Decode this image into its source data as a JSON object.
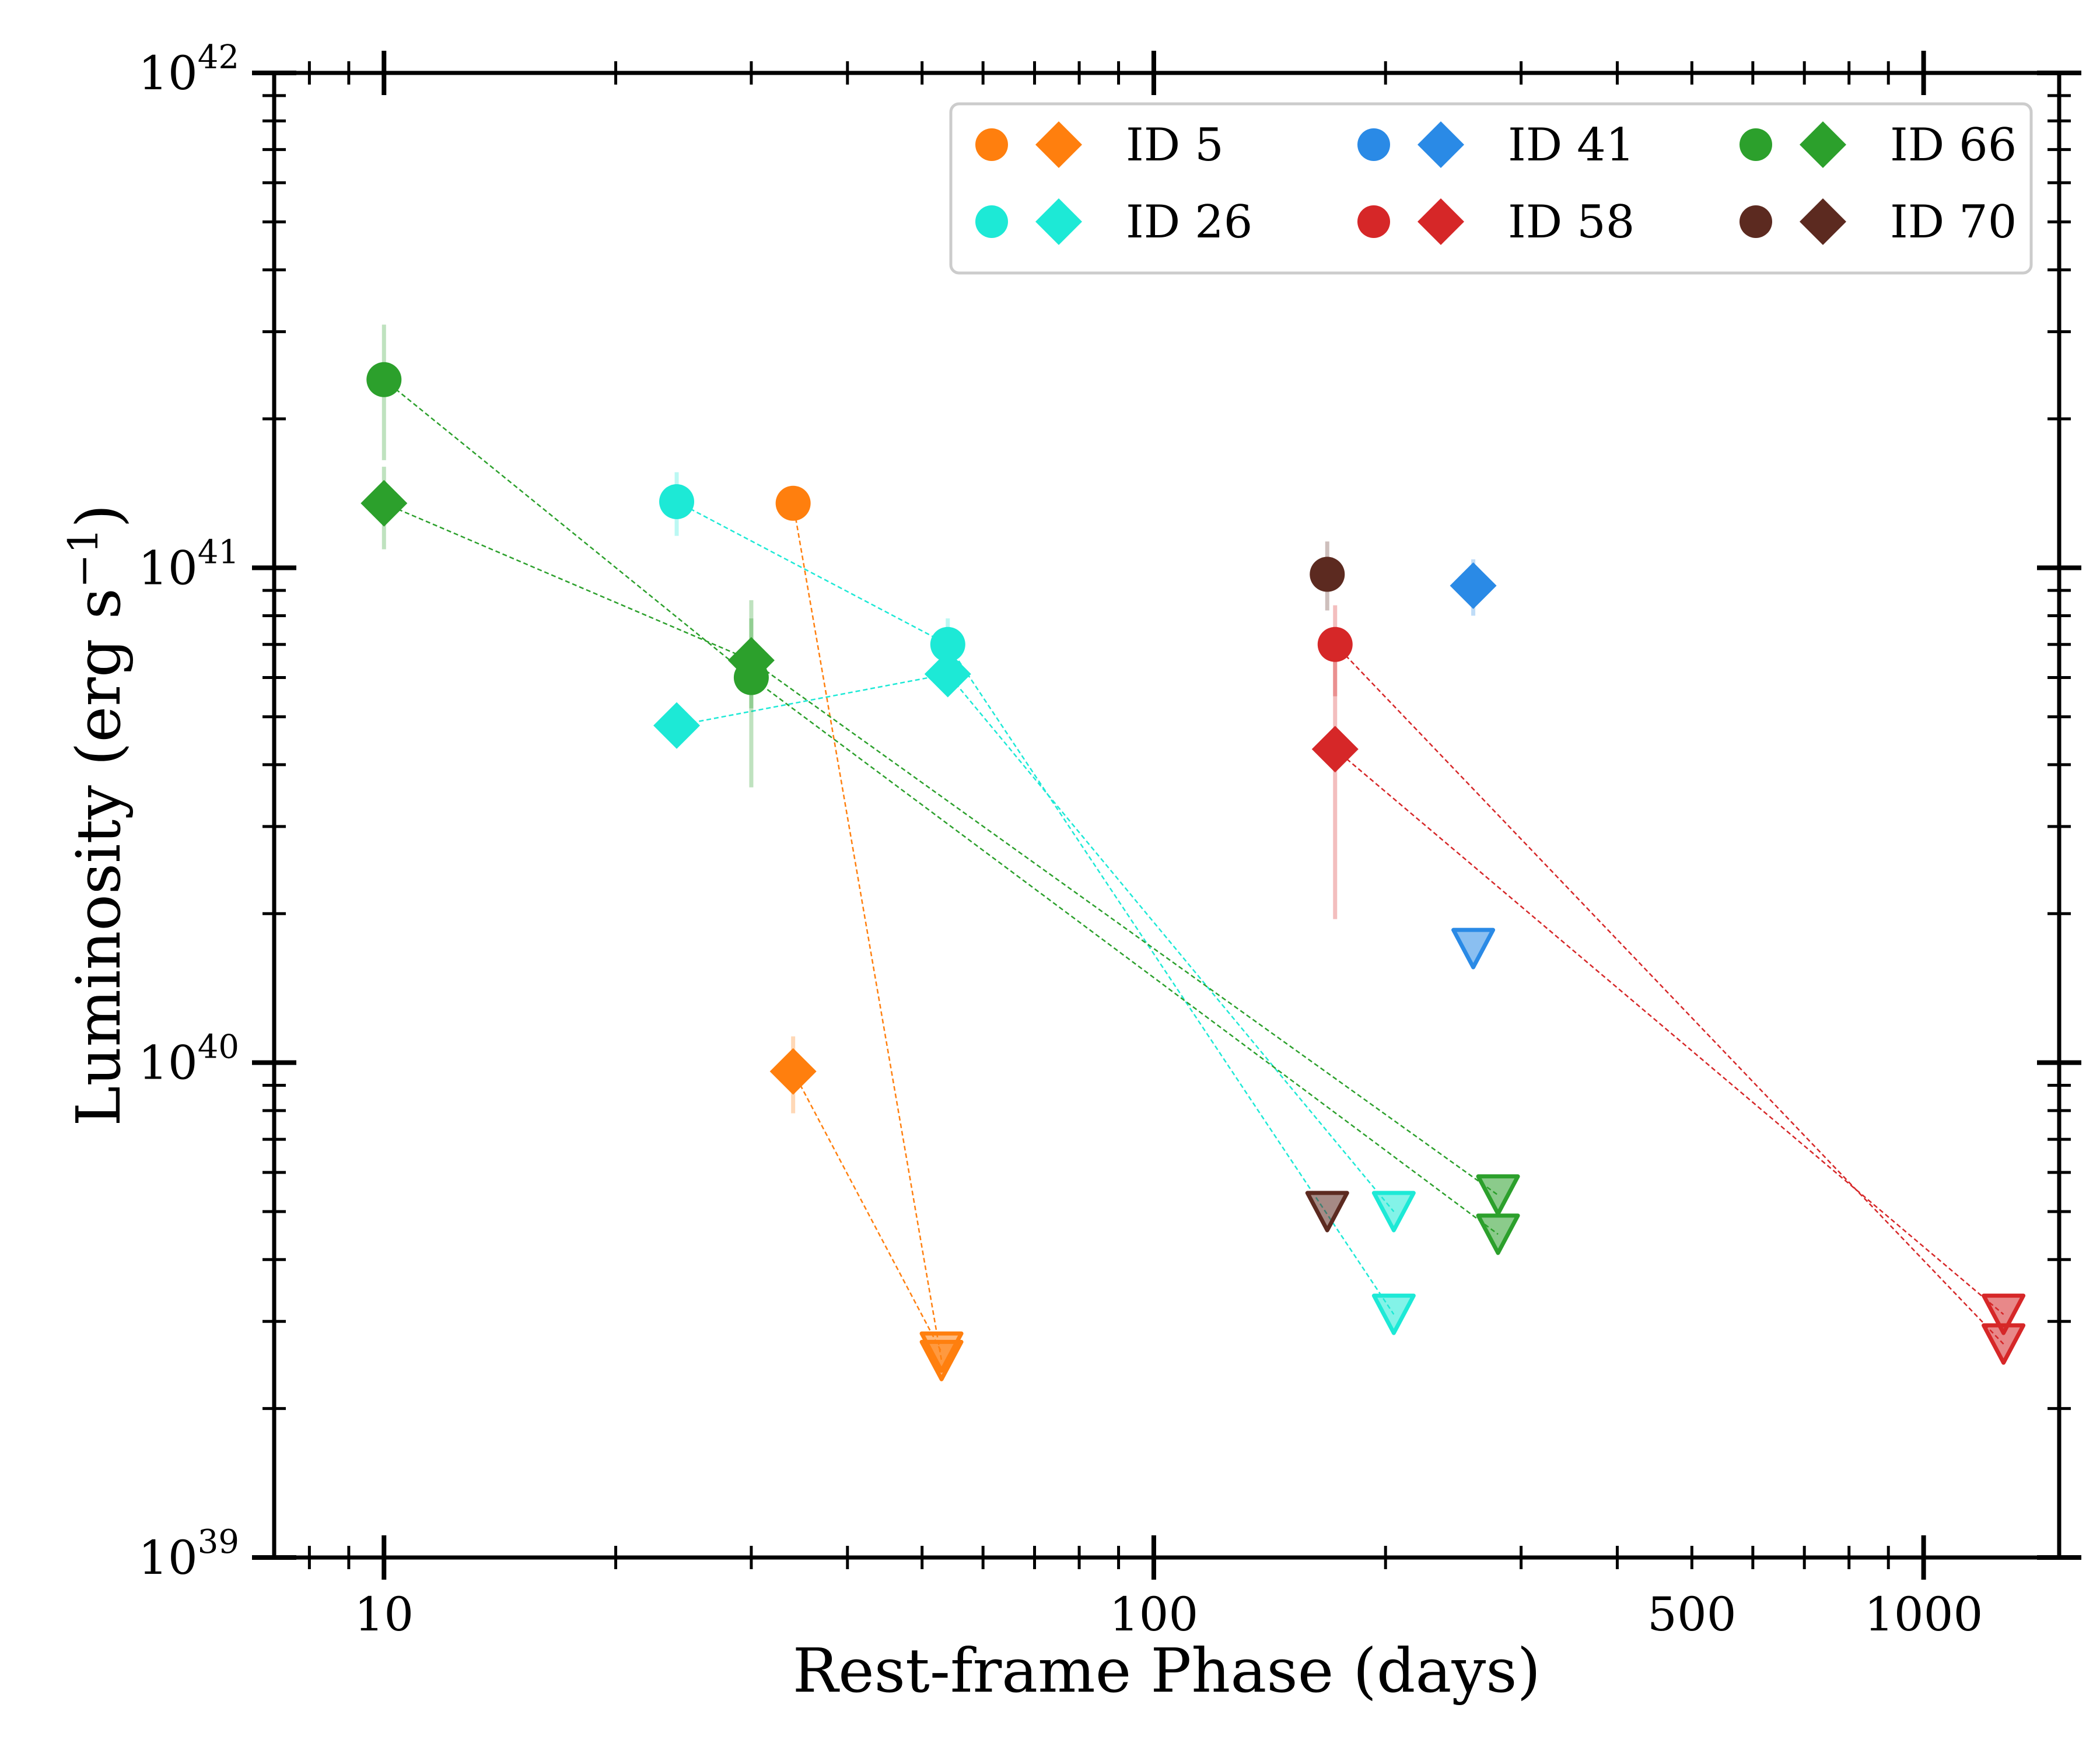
{
  "chart_data": {
    "type": "scatter",
    "xlabel": "Rest-frame Phase (days)",
    "ylabel": "Luminosity (erg s⁻¹)",
    "ylabel_main": "Luminosity (erg s",
    "ylabel_sup": "−1",
    "ylabel_close": ")",
    "xscale": "log",
    "yscale": "log",
    "xlim": [
      7.2,
      1500
    ],
    "ylim": [
      1e+39,
      1e+42
    ],
    "x_ticks": [
      {
        "value": 10,
        "label": "10"
      },
      {
        "value": 100,
        "label": "100"
      },
      {
        "value": 500,
        "label": "500"
      },
      {
        "value": 1000,
        "label": "1000"
      }
    ],
    "y_ticks": [
      {
        "value": 1e+39,
        "base": "10",
        "exp": "39"
      },
      {
        "value": 1e+40,
        "base": "10",
        "exp": "40"
      },
      {
        "value": 1e+41,
        "base": "10",
        "exp": "41"
      },
      {
        "value": 1e+42,
        "base": "10",
        "exp": "42"
      }
    ],
    "legend_position": "top-right",
    "series": [
      {
        "name": "ID 5",
        "color": "#ff7f0e",
        "circles": [
          {
            "x": 34,
            "y": 1.35e+41
          }
        ],
        "diamonds": [
          {
            "x": 34,
            "y": 9.6e+39,
            "ylo": 7.9e+39,
            "yhi": 1.13e+40
          }
        ],
        "upper_limits": [
          {
            "x": 53,
            "y": 2.5e+39
          },
          {
            "x": 53,
            "y": 2.6e+39
          }
        ],
        "links": [
          [
            [
              34,
              1.35e+41
            ],
            [
              53,
              2.5e+39
            ]
          ],
          [
            [
              34,
              9.6e+39
            ],
            [
              53,
              2.6e+39
            ]
          ]
        ]
      },
      {
        "name": "ID 26",
        "color": "#1de9d6",
        "circles": [
          {
            "x": 24,
            "y": 1.36e+41,
            "ylo": 1.16e+41,
            "yhi": 1.56e+41
          },
          {
            "x": 54,
            "y": 7e+40,
            "ylo": 6.1e+40,
            "yhi": 7.9e+40
          }
        ],
        "diamonds": [
          {
            "x": 24,
            "y": 4.8e+40
          },
          {
            "x": 54,
            "y": 6.1e+40
          }
        ],
        "upper_limits": [
          {
            "x": 205,
            "y": 5e+39
          },
          {
            "x": 205,
            "y": 3.1e+39
          }
        ],
        "links": [
          [
            [
              24,
              1.36e+41
            ],
            [
              54,
              7e+40
            ],
            [
              205,
              3.1e+39
            ]
          ],
          [
            [
              24,
              4.8e+40
            ],
            [
              54,
              6.1e+40
            ],
            [
              205,
              5e+39
            ]
          ]
        ]
      },
      {
        "name": "ID 41",
        "color": "#2a8ae6",
        "circles": [],
        "diamonds": [
          {
            "x": 260,
            "y": 9.2e+40,
            "ylo": 8e+40,
            "yhi": 1.04e+41
          }
        ],
        "upper_limits": [
          {
            "x": 260,
            "y": 1.7e+40
          }
        ],
        "links": []
      },
      {
        "name": "ID 58",
        "color": "#d62728",
        "circles": [
          {
            "x": 172,
            "y": 7e+40,
            "ylo": 5.5e+40,
            "yhi": 8.4e+40
          }
        ],
        "diamonds": [
          {
            "x": 172,
            "y": 4.3e+40,
            "ylo": 1.95e+40,
            "yhi": 6.7e+40
          }
        ],
        "upper_limits": [
          {
            "x": 1270,
            "y": 3.1e+39
          },
          {
            "x": 1270,
            "y": 2.7e+39
          }
        ],
        "links": [
          [
            [
              172,
              7e+40
            ],
            [
              1270,
              2.7e+39
            ]
          ],
          [
            [
              172,
              4.3e+40
            ],
            [
              1270,
              3.1e+39
            ]
          ]
        ]
      },
      {
        "name": "ID 66",
        "color": "#2ca02c",
        "circles": [
          {
            "x": 10,
            "y": 2.4e+41,
            "ylo": 1.65e+41,
            "yhi": 3.1e+41
          },
          {
            "x": 30,
            "y": 6e+40,
            "ylo": 3.6e+40,
            "yhi": 8.6e+40
          }
        ],
        "diamonds": [
          {
            "x": 10,
            "y": 1.35e+41,
            "ylo": 1.09e+41,
            "yhi": 1.6e+41
          },
          {
            "x": 30,
            "y": 6.5e+40,
            "ylo": 5.2e+40,
            "yhi": 7.9e+40
          }
        ],
        "upper_limits": [
          {
            "x": 280,
            "y": 5.4e+39
          },
          {
            "x": 280,
            "y": 4.5e+39
          }
        ],
        "links": [
          [
            [
              10,
              2.4e+41
            ],
            [
              30,
              6e+40
            ],
            [
              280,
              4.5e+39
            ]
          ],
          [
            [
              10,
              1.35e+41
            ],
            [
              30,
              6.5e+40
            ],
            [
              280,
              5.4e+39
            ]
          ]
        ]
      },
      {
        "name": "ID 70",
        "color": "#5c2a20",
        "circles": [
          {
            "x": 168,
            "y": 9.7e+40,
            "ylo": 8.2e+40,
            "yhi": 1.13e+41
          }
        ],
        "diamonds": [],
        "upper_limits": [
          {
            "x": 168,
            "y": 5e+39
          }
        ],
        "links": []
      }
    ]
  }
}
